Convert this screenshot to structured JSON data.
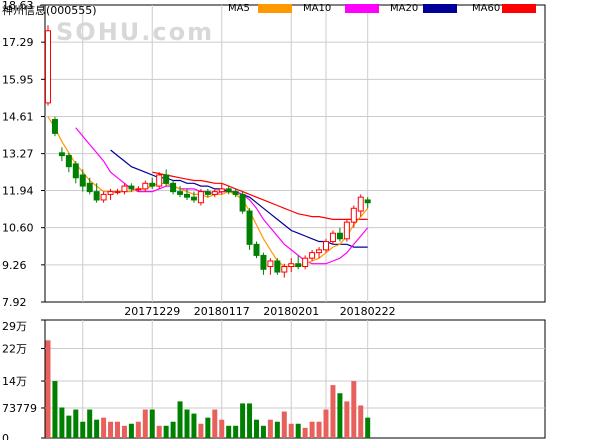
{
  "title": "神州信息(000555)",
  "watermark": "SOHU.com",
  "legend": [
    {
      "label": "MA5",
      "color": "#ff9900"
    },
    {
      "label": "MA10",
      "color": "#ff00ff"
    },
    {
      "label": "MA20",
      "color": "#000099"
    },
    {
      "label": "MA60",
      "color": "#ff0000"
    }
  ],
  "colors": {
    "up": "#ff0000",
    "down": "#008000",
    "grid": "#cccccc",
    "axis": "#000000",
    "vol_up": "#e8605c",
    "vol_down": "#008000"
  },
  "chart_data": [
    {
      "type": "candlestick",
      "title": "",
      "y_tick_labels": [
        "18.63",
        "17.29",
        "15.95",
        "14.61",
        "13.27",
        "11.94",
        "10.60",
        "9.26",
        "7.92"
      ],
      "y_ticks": [
        18.63,
        17.29,
        15.95,
        14.61,
        13.27,
        11.94,
        10.6,
        9.26,
        7.92
      ],
      "ylim": [
        7.92,
        18.63
      ],
      "x_tick_labels": [
        "20171229",
        "20180117",
        "20180201",
        "20180222"
      ],
      "x_tick_index": [
        15,
        25,
        35,
        46
      ],
      "candles": [
        {
          "o": 15.1,
          "h": 17.9,
          "l": 15.0,
          "c": 17.7
        },
        {
          "o": 14.5,
          "h": 14.6,
          "l": 13.9,
          "c": 14.0
        },
        {
          "o": 13.3,
          "h": 13.5,
          "l": 13.0,
          "c": 13.2
        },
        {
          "o": 13.2,
          "h": 13.3,
          "l": 12.6,
          "c": 12.8
        },
        {
          "o": 12.9,
          "h": 13.0,
          "l": 12.2,
          "c": 12.4
        },
        {
          "o": 12.5,
          "h": 12.7,
          "l": 11.9,
          "c": 12.1
        },
        {
          "o": 12.2,
          "h": 12.4,
          "l": 11.8,
          "c": 11.9
        },
        {
          "o": 11.9,
          "h": 12.2,
          "l": 11.5,
          "c": 11.6
        },
        {
          "o": 11.6,
          "h": 11.9,
          "l": 11.5,
          "c": 11.8
        },
        {
          "o": 11.8,
          "h": 12.0,
          "l": 11.6,
          "c": 11.9
        },
        {
          "o": 11.9,
          "h": 12.0,
          "l": 11.8,
          "c": 11.9
        },
        {
          "o": 11.9,
          "h": 12.2,
          "l": 11.8,
          "c": 12.1
        },
        {
          "o": 12.1,
          "h": 12.2,
          "l": 11.9,
          "c": 12.0
        },
        {
          "o": 12.0,
          "h": 12.1,
          "l": 11.9,
          "c": 12.0
        },
        {
          "o": 12.0,
          "h": 12.3,
          "l": 11.9,
          "c": 12.2
        },
        {
          "o": 12.2,
          "h": 12.4,
          "l": 12.0,
          "c": 12.1
        },
        {
          "o": 12.1,
          "h": 12.6,
          "l": 12.0,
          "c": 12.5
        },
        {
          "o": 12.5,
          "h": 12.7,
          "l": 12.1,
          "c": 12.2
        },
        {
          "o": 12.2,
          "h": 12.3,
          "l": 11.8,
          "c": 11.9
        },
        {
          "o": 11.9,
          "h": 12.1,
          "l": 11.7,
          "c": 11.8
        },
        {
          "o": 11.8,
          "h": 12.0,
          "l": 11.6,
          "c": 11.7
        },
        {
          "o": 11.7,
          "h": 11.9,
          "l": 11.5,
          "c": 11.6
        },
        {
          "o": 11.5,
          "h": 12.0,
          "l": 11.4,
          "c": 11.9
        },
        {
          "o": 11.9,
          "h": 12.0,
          "l": 11.7,
          "c": 11.8
        },
        {
          "o": 11.8,
          "h": 12.0,
          "l": 11.7,
          "c": 11.9
        },
        {
          "o": 11.9,
          "h": 12.2,
          "l": 11.8,
          "c": 12.0
        },
        {
          "o": 12.0,
          "h": 12.1,
          "l": 11.8,
          "c": 11.9
        },
        {
          "o": 11.9,
          "h": 12.0,
          "l": 11.7,
          "c": 11.8
        },
        {
          "o": 11.8,
          "h": 11.9,
          "l": 11.1,
          "c": 11.2
        },
        {
          "o": 11.2,
          "h": 11.3,
          "l": 9.8,
          "c": 10.0
        },
        {
          "o": 10.0,
          "h": 10.1,
          "l": 9.5,
          "c": 9.6
        },
        {
          "o": 9.6,
          "h": 9.7,
          "l": 8.9,
          "c": 9.1
        },
        {
          "o": 9.2,
          "h": 9.5,
          "l": 8.9,
          "c": 9.4
        },
        {
          "o": 9.4,
          "h": 9.5,
          "l": 8.9,
          "c": 9.0
        },
        {
          "o": 9.0,
          "h": 9.3,
          "l": 8.8,
          "c": 9.2
        },
        {
          "o": 9.2,
          "h": 9.5,
          "l": 9.0,
          "c": 9.3
        },
        {
          "o": 9.3,
          "h": 9.6,
          "l": 9.1,
          "c": 9.2
        },
        {
          "o": 9.2,
          "h": 9.6,
          "l": 9.1,
          "c": 9.5
        },
        {
          "o": 9.5,
          "h": 9.8,
          "l": 9.4,
          "c": 9.7
        },
        {
          "o": 9.7,
          "h": 9.9,
          "l": 9.5,
          "c": 9.8
        },
        {
          "o": 9.8,
          "h": 10.2,
          "l": 9.7,
          "c": 10.1
        },
        {
          "o": 10.1,
          "h": 10.5,
          "l": 10.0,
          "c": 10.4
        },
        {
          "o": 10.4,
          "h": 10.6,
          "l": 10.1,
          "c": 10.2
        },
        {
          "o": 10.2,
          "h": 10.9,
          "l": 10.1,
          "c": 10.8
        },
        {
          "o": 10.8,
          "h": 11.4,
          "l": 10.6,
          "c": 11.3
        },
        {
          "o": 11.2,
          "h": 11.8,
          "l": 11.0,
          "c": 11.7
        },
        {
          "o": 11.6,
          "h": 11.7,
          "l": 11.3,
          "c": 11.5
        }
      ],
      "ma5": [
        14.6,
        14.2,
        13.7,
        13.3,
        12.9,
        12.6,
        12.3,
        12.1,
        11.9,
        11.9,
        11.9,
        11.9,
        11.9,
        12.0,
        12.0,
        12.1,
        12.2,
        12.2,
        12.1,
        12.0,
        11.9,
        11.8,
        11.8,
        11.7,
        11.8,
        11.8,
        11.9,
        11.8,
        11.6,
        11.2,
        10.7,
        10.2,
        9.8,
        9.4,
        9.2,
        9.2,
        9.2,
        9.3,
        9.4,
        9.5,
        9.7,
        9.9,
        10.0,
        10.3,
        10.7,
        11.0,
        11.3
      ],
      "ma10": [
        null,
        null,
        null,
        null,
        14.2,
        13.9,
        13.6,
        13.3,
        13.0,
        12.6,
        12.4,
        12.2,
        12.0,
        11.9,
        11.9,
        11.9,
        12.0,
        12.1,
        12.1,
        12.0,
        12.0,
        12.0,
        11.9,
        11.9,
        11.8,
        11.9,
        11.9,
        11.9,
        11.8,
        11.6,
        11.3,
        10.9,
        10.6,
        10.3,
        10.0,
        9.8,
        9.6,
        9.4,
        9.3,
        9.3,
        9.3,
        9.4,
        9.5,
        9.7,
        10.0,
        10.3,
        10.6
      ],
      "ma20": [
        null,
        null,
        null,
        null,
        null,
        null,
        null,
        null,
        null,
        13.4,
        13.2,
        13.0,
        12.8,
        12.7,
        12.6,
        12.5,
        12.4,
        12.4,
        12.3,
        12.3,
        12.2,
        12.2,
        12.1,
        12.1,
        12.0,
        12.0,
        11.9,
        11.9,
        11.8,
        11.7,
        11.5,
        11.3,
        11.1,
        10.9,
        10.7,
        10.5,
        10.4,
        10.3,
        10.2,
        10.1,
        10.1,
        10.0,
        10.0,
        10.0,
        9.9,
        9.9,
        9.9
      ],
      "ma60": [
        null,
        null,
        null,
        null,
        null,
        null,
        null,
        null,
        null,
        null,
        null,
        null,
        null,
        null,
        null,
        12.6,
        12.55,
        12.5,
        12.45,
        12.4,
        12.35,
        12.3,
        12.3,
        12.25,
        12.2,
        12.2,
        12.1,
        12.0,
        11.9,
        11.8,
        11.7,
        11.6,
        11.5,
        11.4,
        11.3,
        11.2,
        11.1,
        11.05,
        11.0,
        11.0,
        10.95,
        10.9,
        10.9,
        10.9,
        10.9,
        10.9,
        10.9
      ]
    },
    {
      "type": "bar",
      "title": "",
      "y_tick_labels": [
        "29万",
        "22万",
        "14万",
        "73779",
        "0"
      ],
      "y_ticks": [
        290000,
        220000,
        140000,
        73779,
        0
      ],
      "ylim": [
        0,
        290000
      ],
      "volumes": [
        240000,
        140000,
        75000,
        55000,
        70000,
        40000,
        70000,
        45000,
        50000,
        40000,
        40000,
        30000,
        35000,
        40000,
        70000,
        70000,
        30000,
        30000,
        40000,
        90000,
        70000,
        60000,
        35000,
        50000,
        70000,
        45000,
        30000,
        30000,
        85000,
        85000,
        45000,
        30000,
        45000,
        40000,
        65000,
        35000,
        35000,
        25000,
        40000,
        40000,
        70000,
        130000,
        110000,
        90000,
        140000,
        80000,
        50000
      ]
    }
  ]
}
